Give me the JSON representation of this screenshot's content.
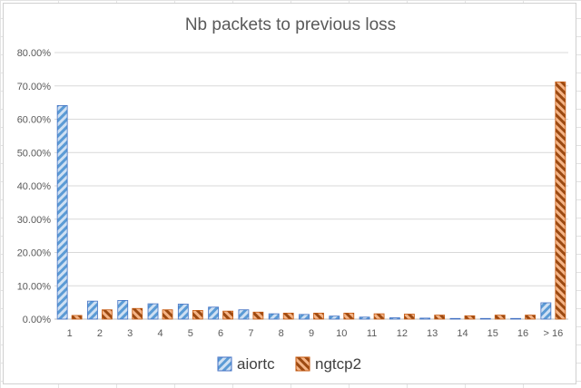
{
  "chart_data": {
    "type": "bar",
    "title": "Nb packets to previous loss",
    "categories": [
      "1",
      "2",
      "3",
      "4",
      "5",
      "6",
      "7",
      "8",
      "9",
      "10",
      "11",
      "12",
      "13",
      "14",
      "15",
      "16",
      "> 16"
    ],
    "series": [
      {
        "name": "aiortc",
        "color": "#5b9bd5",
        "pattern": "diagonal-hatch",
        "values": [
          64.1,
          5.4,
          5.6,
          4.6,
          4.5,
          3.6,
          2.8,
          1.6,
          1.4,
          0.9,
          0.6,
          0.4,
          0.3,
          0.2,
          0.2,
          0.2,
          4.9
        ]
      },
      {
        "name": "ngtcp2",
        "color": "#ed7d31",
        "pattern": "diagonal-hatch",
        "values": [
          1.1,
          2.8,
          3.2,
          2.8,
          2.6,
          2.4,
          2.1,
          1.8,
          1.8,
          1.8,
          1.6,
          1.5,
          1.2,
          1.0,
          1.2,
          1.2,
          71.2
        ]
      }
    ],
    "yticks": [
      "0.00%",
      "10.00%",
      "20.00%",
      "30.00%",
      "40.00%",
      "50.00%",
      "60.00%",
      "70.00%",
      "80.00%"
    ],
    "ylim": [
      0,
      80
    ],
    "y_unit": "percent",
    "grid": true,
    "legend_position": "bottom"
  }
}
